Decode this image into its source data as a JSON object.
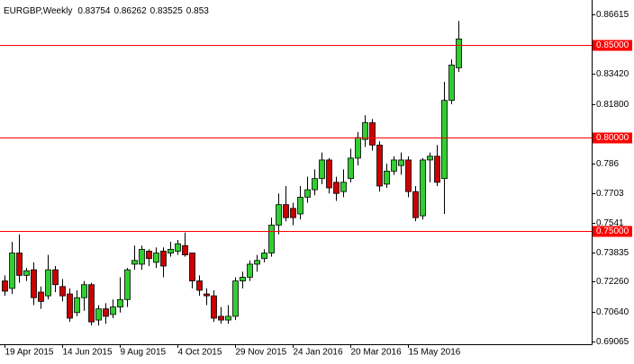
{
  "chart_data": {
    "type": "candlestick",
    "title": "EURGBP,Weekly",
    "up_color": "#32cd32",
    "down_color": "#cc0000",
    "level_color": "#ff0000",
    "categories": [
      "19 Apr 2015",
      null,
      null,
      null,
      null,
      null,
      null,
      null,
      "14 Jun 2015",
      null,
      null,
      null,
      null,
      null,
      null,
      null,
      "9 Aug 2015",
      null,
      null,
      null,
      null,
      null,
      null,
      null,
      "4 Oct 2015",
      null,
      null,
      null,
      null,
      null,
      null,
      null,
      "29 Nov 2015",
      null,
      null,
      null,
      null,
      null,
      null,
      null,
      "24 Jan 2016",
      null,
      null,
      null,
      null,
      null,
      null,
      null,
      "20 Mar 2016",
      null,
      null,
      null,
      null,
      null,
      null,
      null,
      "15 May 2016",
      null,
      null,
      null,
      null,
      null,
      null,
      null
    ],
    "open": [
      0.723,
      0.719,
      0.738,
      0.726,
      0.729,
      0.717,
      0.715,
      0.729,
      0.72,
      0.716,
      0.706,
      0.714,
      0.721,
      0.702,
      0.708,
      0.705,
      0.709,
      0.713,
      0.732,
      0.732,
      0.739,
      0.733,
      0.739,
      0.738,
      0.739,
      0.742,
      0.738,
      0.723,
      0.716,
      0.715,
      0.704,
      0.702,
      0.704,
      0.723,
      0.725,
      0.732,
      0.735,
      0.738,
      0.753,
      0.764,
      0.762,
      0.759,
      0.768,
      0.772,
      0.778,
      0.788,
      0.776,
      0.771,
      0.778,
      0.789,
      0.799,
      0.808,
      0.796,
      0.775,
      0.782,
      0.785,
      0.788,
      0.771,
      0.758,
      0.788,
      0.79,
      0.778,
      0.82,
      0.83754
    ],
    "high": [
      0.726,
      0.744,
      0.748,
      0.73,
      0.733,
      0.72,
      0.737,
      0.731,
      0.724,
      0.719,
      0.718,
      0.723,
      0.722,
      0.71,
      0.711,
      0.713,
      0.725,
      0.73,
      0.742,
      0.742,
      0.74,
      0.741,
      0.741,
      0.744,
      0.745,
      0.749,
      0.738,
      0.726,
      0.719,
      0.718,
      0.709,
      0.71,
      0.725,
      0.728,
      0.734,
      0.737,
      0.74,
      0.757,
      0.77,
      0.774,
      0.765,
      0.774,
      0.779,
      0.783,
      0.792,
      0.789,
      0.779,
      0.783,
      0.794,
      0.803,
      0.812,
      0.81,
      0.798,
      0.786,
      0.79,
      0.792,
      0.79,
      0.774,
      0.789,
      0.792,
      0.796,
      0.83,
      0.842,
      0.86262
    ],
    "low": [
      0.715,
      0.716,
      0.722,
      0.723,
      0.71,
      0.708,
      0.713,
      0.717,
      0.712,
      0.701,
      0.704,
      0.707,
      0.699,
      0.699,
      0.7,
      0.703,
      0.706,
      0.709,
      0.729,
      0.729,
      0.731,
      0.73,
      0.725,
      0.736,
      0.737,
      0.736,
      0.719,
      0.715,
      0.71,
      0.701,
      0.7,
      0.7,
      0.702,
      0.719,
      0.723,
      0.728,
      0.733,
      0.736,
      0.748,
      0.755,
      0.753,
      0.756,
      0.765,
      0.769,
      0.775,
      0.77,
      0.766,
      0.768,
      0.776,
      0.785,
      0.795,
      0.793,
      0.771,
      0.773,
      0.78,
      0.78,
      0.768,
      0.755,
      0.756,
      0.776,
      0.774,
      0.759,
      0.818,
      0.83525
    ],
    "close": [
      0.7175,
      0.738,
      0.726,
      0.7285,
      0.714,
      0.712,
      0.729,
      0.721,
      0.715,
      0.703,
      0.714,
      0.721,
      0.701,
      0.708,
      0.704,
      0.709,
      0.713,
      0.729,
      0.734,
      0.74,
      0.735,
      0.738,
      0.731,
      0.74,
      0.743,
      0.737,
      0.723,
      0.718,
      0.715,
      0.703,
      0.702,
      0.704,
      0.723,
      0.725,
      0.732,
      0.734,
      0.738,
      0.753,
      0.764,
      0.757,
      0.757,
      0.768,
      0.772,
      0.778,
      0.788,
      0.773,
      0.77,
      0.776,
      0.789,
      0.8,
      0.808,
      0.796,
      0.774,
      0.782,
      0.788,
      0.788,
      0.771,
      0.757,
      0.788,
      0.79,
      0.776,
      0.82,
      0.839,
      0.853
    ],
    "ylim": [
      0.689,
      0.872
    ],
    "yticks": [
      0.86615,
      {
        "value": 0.8342,
        "label": "0.83420"
      },
      {
        "value": 0.818,
        "label": "0.81800"
      },
      0.786,
      0.7703,
      0.7541,
      0.73835,
      {
        "value": 0.7226,
        "label": "0.72260"
      },
      {
        "value": 0.7064,
        "label": "0.70640"
      },
      0.69065
    ],
    "levels": [
      {
        "value": 0.85,
        "label": "0.85000"
      },
      {
        "value": 0.8,
        "label": "0.80000"
      },
      {
        "value": 0.75,
        "label": "0.75000"
      }
    ]
  }
}
